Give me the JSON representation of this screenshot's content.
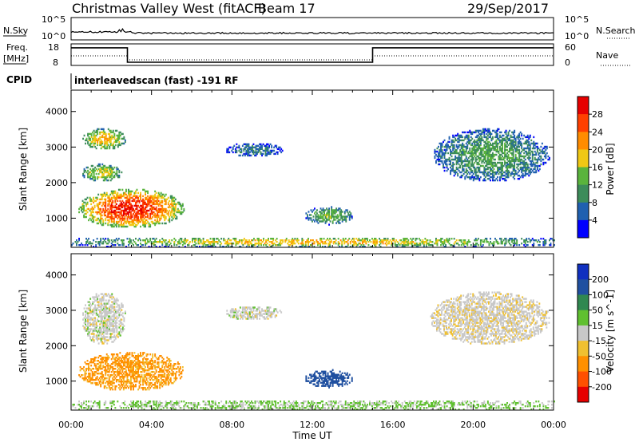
{
  "header": {
    "title": "Christmas Valley West (fitACF)",
    "beam": "Beam 17",
    "date": "29/Sep/2017"
  },
  "panels": {
    "sky": {
      "left_label": "N.Sky",
      "right_label": "N.Search",
      "ticks": [
        "10^5",
        "10^0"
      ],
      "right_ticks": [
        "10^5",
        "10^0"
      ]
    },
    "freq": {
      "left_label_1": "Freq.",
      "left_label_2": "[MHz]",
      "ticks": [
        "18",
        "8"
      ],
      "right_label": "Nave",
      "right_ticks": [
        "60",
        "0"
      ]
    },
    "cpid": {
      "label": "CPID",
      "text": "interleavedscan (fast) -191 RF"
    }
  },
  "colors": {
    "power": [
      "#0000ff",
      "#2060b0",
      "#3c8c5a",
      "#5ab43c",
      "#f0c814",
      "#ff8c00",
      "#ff4000",
      "#e60000"
    ],
    "velocity": [
      "#e60000",
      "#ff5000",
      "#ff9000",
      "#f0c030",
      "#c8c8c8",
      "#60c030",
      "#308850",
      "#2050a0",
      "#1030c0"
    ]
  },
  "chart_data": [
    {
      "type": "heatmap",
      "name": "power",
      "xlabel": "",
      "ylabel": "Slant Range [km]",
      "x_ticks": [
        "00:00",
        "04:00",
        "08:00",
        "12:00",
        "16:00",
        "20:00",
        "00:00"
      ],
      "x_range_hours": [
        0,
        24
      ],
      "y_ticks": [
        1000,
        2000,
        3000,
        4000
      ],
      "ylim": [
        180,
        4600
      ],
      "colorbar": {
        "label": "Power [dB]",
        "ticks": [
          4,
          8,
          12,
          16,
          20,
          24,
          28
        ],
        "range": [
          0,
          32
        ]
      },
      "echo_regions": [
        {
          "t0": 0.3,
          "t1": 5.6,
          "r0": 700,
          "r1": 1800,
          "peak": 29
        },
        {
          "t0": 0.5,
          "t1": 2.5,
          "r0": 2000,
          "r1": 2500,
          "peak": 18
        },
        {
          "t0": 0.5,
          "t1": 2.7,
          "r0": 2900,
          "r1": 3500,
          "peak": 20
        },
        {
          "t0": 7.6,
          "t1": 10.5,
          "r0": 2700,
          "r1": 3100,
          "peak": 8
        },
        {
          "t0": 11.6,
          "t1": 14.0,
          "r0": 800,
          "r1": 1300,
          "peak": 14
        },
        {
          "t0": 18.0,
          "t1": 23.8,
          "r0": 2000,
          "r1": 3500,
          "peak": 12
        },
        {
          "t0": 0.0,
          "t1": 24.0,
          "r0": 180,
          "r1": 450,
          "peak": 20
        }
      ]
    },
    {
      "type": "heatmap",
      "name": "velocity",
      "xlabel": "Time UT",
      "ylabel": "Slant Range [km]",
      "x_ticks": [
        "00:00",
        "04:00",
        "08:00",
        "12:00",
        "16:00",
        "20:00",
        "00:00"
      ],
      "x_range_hours": [
        0,
        24
      ],
      "y_ticks": [
        1000,
        2000,
        3000,
        4000
      ],
      "ylim": [
        180,
        4600
      ],
      "colorbar": {
        "label": "Velocity [m s^-1]",
        "ticks": [
          200,
          100,
          50,
          15,
          -15,
          -50,
          -100,
          -200
        ],
        "range": [
          -300,
          300
        ]
      },
      "echo_regions": [
        {
          "t0": 0.3,
          "t1": 5.6,
          "r0": 700,
          "r1": 1800,
          "velocity": -60
        },
        {
          "t0": 0.5,
          "t1": 2.7,
          "r0": 2000,
          "r1": 3500,
          "velocity": 0
        },
        {
          "t0": 7.6,
          "t1": 10.5,
          "r0": 2700,
          "r1": 3100,
          "velocity": 0
        },
        {
          "t0": 11.6,
          "t1": 14.0,
          "r0": 800,
          "r1": 1300,
          "velocity": 120
        },
        {
          "t0": 17.8,
          "t1": 23.8,
          "r0": 2000,
          "r1": 3500,
          "velocity": -5
        },
        {
          "t0": 0.0,
          "t1": 24.0,
          "r0": 180,
          "r1": 450,
          "velocity": 20
        }
      ]
    }
  ],
  "freq_steps": [
    {
      "t0": 0.0,
      "t1": 2.8,
      "freq_mhz": 16.2
    },
    {
      "t0": 2.8,
      "t1": 15.0,
      "freq_mhz": 9.5
    },
    {
      "t0": 15.0,
      "t1": 24.0,
      "freq_mhz": 16.2
    }
  ]
}
